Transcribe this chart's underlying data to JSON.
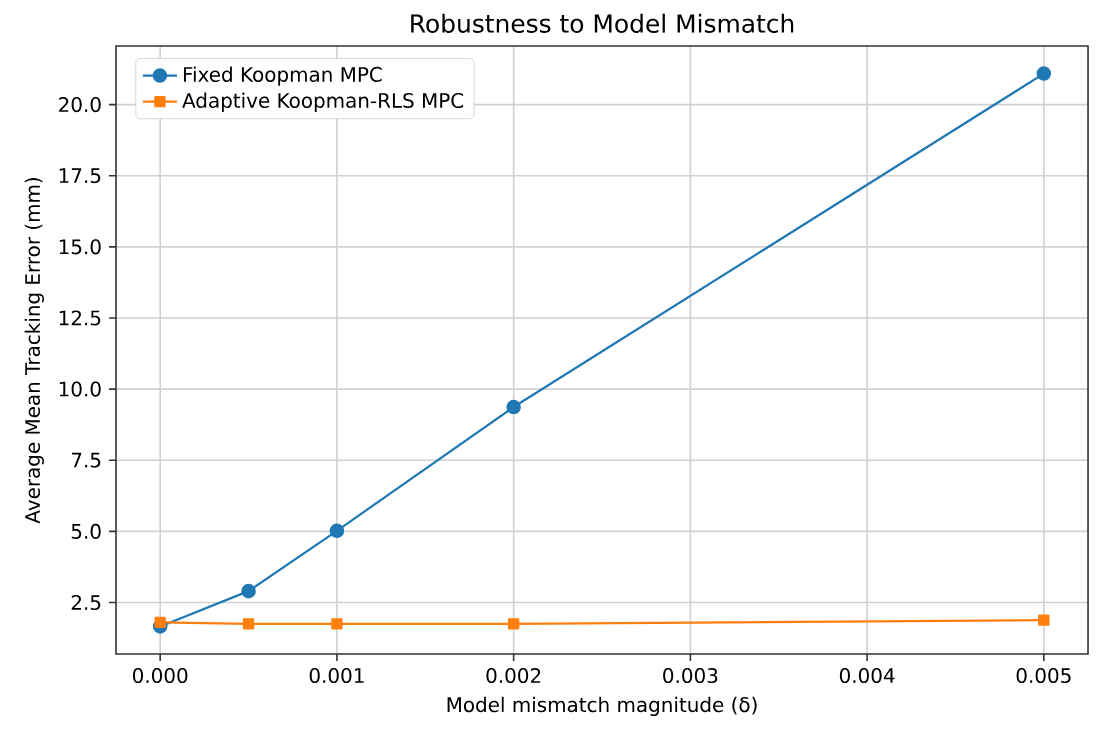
{
  "chart_data": {
    "type": "line",
    "title": "Robustness to Model Mismatch",
    "xlabel": "Model mismatch magnitude (δ)",
    "ylabel": "Average Mean Tracking Error (mm)",
    "x": [
      0,
      0.0005,
      0.001,
      0.002,
      0.005
    ],
    "series": [
      {
        "name": "Fixed Koopman MPC",
        "color": "#1f77b4",
        "marker": "circle",
        "values": [
          1.66,
          2.9,
          5.02,
          9.37,
          21.09
        ]
      },
      {
        "name": "Adaptive Koopman-RLS MPC",
        "color": "#ff7f0e",
        "marker": "square",
        "values": [
          1.8,
          1.75,
          1.75,
          1.75,
          1.88
        ]
      }
    ],
    "xlim": [
      -0.00025,
      0.00525
    ],
    "ylim": [
      0.69,
      22.06
    ],
    "xticks": [
      {
        "value": 0,
        "label": "0.000"
      },
      {
        "value": 0.001,
        "label": "0.001"
      },
      {
        "value": 0.002,
        "label": "0.002"
      },
      {
        "value": 0.003,
        "label": "0.003"
      },
      {
        "value": 0.004,
        "label": "0.004"
      },
      {
        "value": 0.005,
        "label": "0.005"
      }
    ],
    "yticks": [
      {
        "value": 2.5,
        "label": "2.5"
      },
      {
        "value": 5,
        "label": "5.0"
      },
      {
        "value": 7.5,
        "label": "7.5"
      },
      {
        "value": 10,
        "label": "10.0"
      },
      {
        "value": 12.5,
        "label": "12.5"
      },
      {
        "value": 15,
        "label": "15.0"
      },
      {
        "value": 17.5,
        "label": "17.5"
      },
      {
        "value": 20,
        "label": "20.0"
      }
    ],
    "grid": true,
    "legend": "top left",
    "line_style": "solid"
  }
}
